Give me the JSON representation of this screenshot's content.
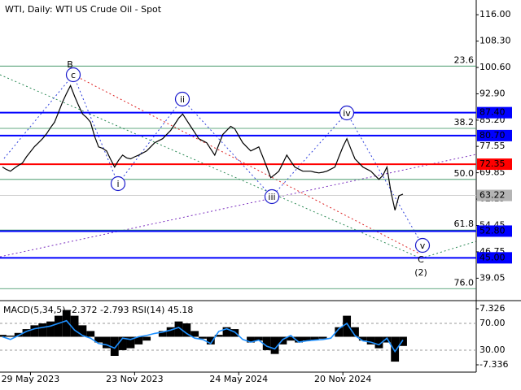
{
  "chart_data": [
    {
      "type": "line",
      "title": "WTI, Daily:  WTI US Crude Oil - Spot",
      "color": "#000000",
      "categories": [
        null,
        null,
        null,
        null,
        null,
        null,
        null,
        "29 May 2023",
        null,
        null,
        null,
        null,
        null,
        null,
        null,
        null,
        null,
        null,
        null,
        null,
        null,
        null,
        null,
        null,
        null,
        null,
        null,
        null,
        null,
        null,
        null,
        null,
        null,
        "23 Nov 2023",
        null,
        null,
        null,
        null,
        null,
        null,
        null,
        null,
        null,
        null,
        null,
        null,
        null,
        null,
        null,
        null,
        null,
        null,
        null,
        null,
        null,
        null,
        null,
        null,
        null,
        "24 May 2024",
        null,
        null,
        null,
        null,
        null,
        null,
        null,
        null,
        null,
        null,
        null,
        null,
        null,
        null,
        null,
        null,
        null,
        null,
        null,
        null,
        null,
        null,
        null,
        null,
        null,
        "20 Nov 2024",
        null,
        null,
        null,
        null,
        null,
        null,
        null,
        null,
        null,
        null,
        null,
        null,
        null,
        null,
        null
      ],
      "values": [
        71.5,
        70.8,
        70.3,
        71.2,
        72.0,
        72.7,
        74.5,
        76.0,
        77.5,
        78.6,
        79.8,
        81.2,
        83.0,
        84.6,
        87.5,
        90.5,
        93.0,
        95.3,
        92.2,
        89.5,
        87.0,
        86.0,
        84.6,
        80.5,
        77.4,
        77.0,
        76.2,
        73.8,
        71.5,
        73.5,
        75.0,
        74.2,
        73.9,
        74.5,
        75.0,
        75.6,
        76.2,
        77.4,
        78.6,
        79.2,
        79.8,
        81.0,
        82.2,
        84.0,
        85.8,
        87.0,
        85.2,
        83.4,
        81.6,
        79.8,
        79.2,
        78.6,
        76.8,
        75.0,
        78.0,
        81.0,
        82.2,
        83.4,
        82.7,
        80.6,
        78.6,
        77.4,
        76.2,
        76.8,
        77.4,
        74.5,
        71.5,
        68.4,
        69.3,
        70.3,
        72.6,
        75.0,
        73.2,
        71.5,
        70.9,
        70.3,
        70.3,
        70.3,
        70.0,
        69.8,
        70.0,
        70.3,
        70.9,
        71.5,
        74.5,
        77.4,
        79.8,
        76.8,
        73.9,
        72.7,
        71.5,
        70.9,
        70.3,
        69.1,
        67.9,
        69.1,
        71.5,
        64.3,
        58.9,
        63.1,
        63.6
      ],
      "ylim": [
        32.5,
        120.3
      ],
      "yticks": [
        {
          "value": 116,
          "label": "116.00"
        },
        {
          "value": 108.3,
          "label": "108.30"
        },
        {
          "value": 100.6,
          "label": "100.60"
        },
        {
          "value": 92.9,
          "label": "92.90"
        },
        {
          "value": 85.2,
          "label": "85.20"
        },
        {
          "value": 77.55,
          "label": "77.55"
        },
        {
          "value": 69.85,
          "label": "69.85"
        },
        {
          "value": 62.15,
          "label": "62.15"
        },
        {
          "value": 54.45,
          "label": "54.45"
        },
        {
          "value": 46.75,
          "label": "46.75"
        },
        {
          "value": 39.05,
          "label": "39.05"
        }
      ],
      "levels": [
        {
          "value": 87.4,
          "label": "87.40",
          "color": "#0000ff"
        },
        {
          "value": 80.7,
          "label": "80.70",
          "color": "#0000ff"
        },
        {
          "value": 72.35,
          "label": "72.35",
          "color": "#ff0000"
        },
        {
          "value": 63.22,
          "label": "63.22",
          "color": "#b4b4b4"
        },
        {
          "value": 52.8,
          "label": "52.80",
          "color": "#0000ff"
        },
        {
          "value": 45.0,
          "label": "45.00",
          "color": "#0000ff"
        }
      ],
      "fib_levels": [
        {
          "ratio": "23.6",
          "price": 101.0
        },
        {
          "ratio": "38.2",
          "price": 82.8
        },
        {
          "ratio": "50.0",
          "price": 67.9
        },
        {
          "ratio": "61.8",
          "price": 53.1
        },
        {
          "ratio": "76.0",
          "price": 36.0
        }
      ],
      "fib_color": "#2e8b57",
      "waves": [
        {
          "text": "B",
          "color": "#b22222"
        },
        {
          "text": "c",
          "color": "#1a1acc"
        },
        {
          "text": "i",
          "color": "#1a1acc"
        },
        {
          "text": "ii",
          "color": "#1a1acc"
        },
        {
          "text": "iii",
          "color": "#1a1acc"
        },
        {
          "text": "iv",
          "color": "#1a1acc"
        },
        {
          "text": "v",
          "color": "#1a1acc"
        },
        {
          "text": "C",
          "color": "#b22222"
        },
        {
          "text": "(2)",
          "color": "#2e8b57"
        }
      ]
    },
    {
      "type": "indicator",
      "title": "MACD(5,34,5) -2.372 -2.793 RSI(14) 45.18",
      "ylim": [
        -9.25,
        9.03
      ],
      "yticks": [
        7.326,
        -7.336
      ],
      "y2lim": [
        -2.7,
        101.5
      ],
      "y2ticks": [
        {
          "value": 70,
          "label": "70.00"
        },
        {
          "value": 30,
          "label": "30.00"
        }
      ],
      "series": [
        {
          "kind": "bar",
          "color": "#000000",
          "values": [
            0.5,
            0.3,
            1.0,
            2.0,
            3.0,
            3.5,
            4.0,
            5.5,
            7.0,
            5.5,
            3.0,
            1.5,
            -1.5,
            -3.0,
            -5.0,
            -3.5,
            -3.0,
            -2.0,
            -1.0,
            0.0,
            1.5,
            2.5,
            4.0,
            3.5,
            1.5,
            -0.5,
            -2.0,
            0.5,
            2.5,
            2.0,
            0.0,
            -1.5,
            -1.0,
            -3.5,
            -4.5,
            -2.0,
            -1.0,
            -1.5,
            -1.0,
            -0.8,
            -0.5,
            0.0,
            2.5,
            5.5,
            2.5,
            -1.0,
            -2.0,
            -3.0,
            -1.5,
            -6.5,
            -2.4
          ]
        },
        {
          "kind": "line",
          "axis": "y2",
          "color": "#1e90ff",
          "values": [
            50,
            46,
            52,
            58,
            62,
            64,
            66,
            70,
            74,
            60,
            52,
            48,
            40,
            38,
            33,
            48,
            46,
            50,
            52,
            55,
            57,
            60,
            64,
            55,
            48,
            46,
            40,
            58,
            62,
            57,
            46,
            42,
            45,
            36,
            32,
            46,
            52,
            42,
            44,
            45,
            46,
            48,
            62,
            70,
            52,
            44,
            42,
            38,
            48,
            28,
            45.18
          ]
        }
      ]
    }
  ]
}
